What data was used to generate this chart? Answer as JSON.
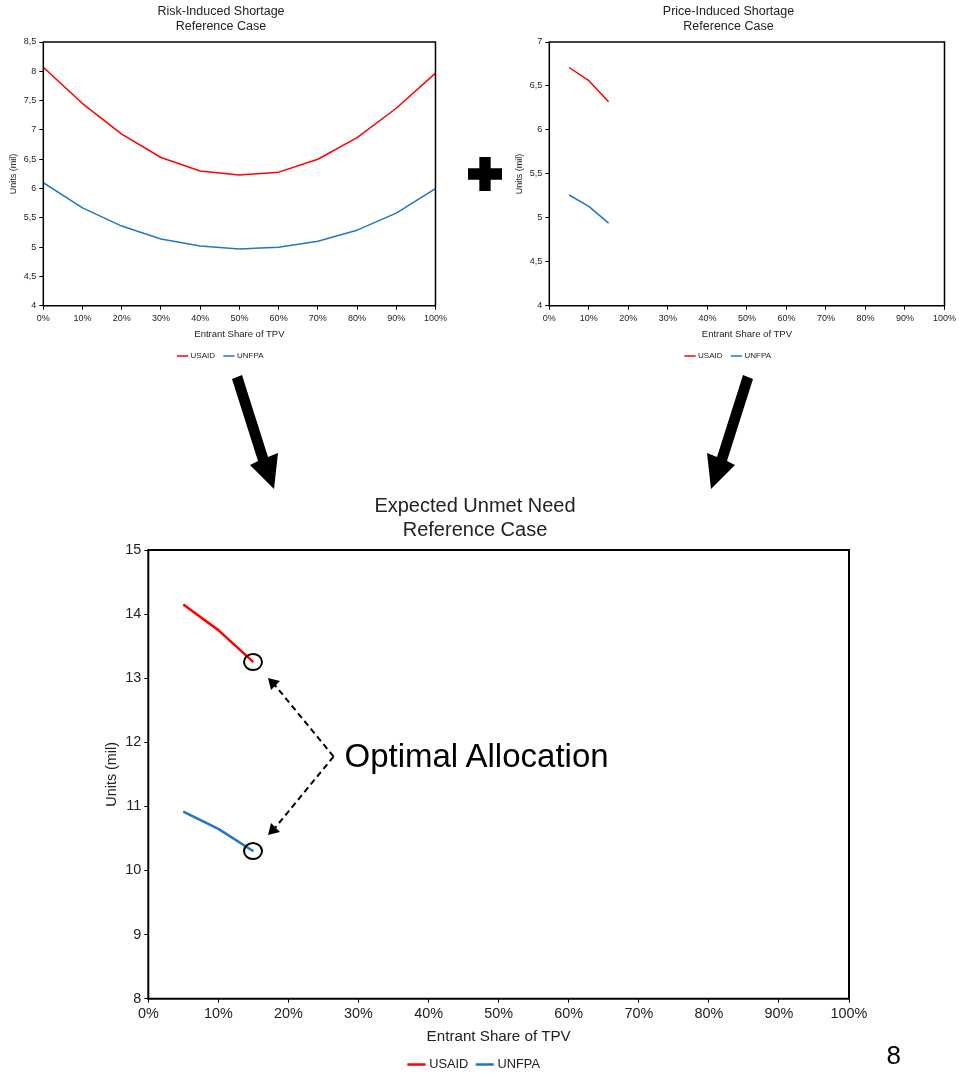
{
  "chart_data": [
    {
      "type": "line",
      "title": "Risk-Induced Shortage\nReference Case",
      "xlabel": "Entrant Share of TPV",
      "ylabel": "Units (mil)",
      "x": [
        0,
        10,
        20,
        30,
        40,
        50,
        60,
        70,
        80,
        90,
        100
      ],
      "series": [
        {
          "name": "USAID",
          "color": "#ff0000",
          "values": [
            8.07,
            7.45,
            6.93,
            6.53,
            6.3,
            6.23,
            6.28,
            6.5,
            6.87,
            7.37,
            7.97
          ]
        },
        {
          "name": "UNFPA",
          "color": "#1f77c8",
          "values": [
            6.1,
            5.67,
            5.36,
            5.14,
            5.02,
            4.97,
            5.0,
            5.1,
            5.29,
            5.58,
            6.0
          ]
        }
      ],
      "xlim": [
        0,
        100
      ],
      "xticks": [
        {
          "value": 0,
          "label": "0%"
        },
        {
          "value": 10,
          "label": "10%"
        },
        {
          "value": 20,
          "label": "20%"
        },
        {
          "value": 30,
          "label": "30%"
        },
        {
          "value": 40,
          "label": "40%"
        },
        {
          "value": 50,
          "label": "50%"
        },
        {
          "value": 60,
          "label": "60%"
        },
        {
          "value": 70,
          "label": "70%"
        },
        {
          "value": 80,
          "label": "80%"
        },
        {
          "value": 90,
          "label": "90%"
        },
        {
          "value": 100,
          "label": "100%"
        }
      ],
      "ylim": [
        4,
        8.5
      ],
      "yticks": [
        4,
        {
          "value": 4.5,
          "label": "4,5"
        },
        5,
        {
          "value": 5.5,
          "label": "5,5"
        },
        6,
        {
          "value": 6.5,
          "label": "6,5"
        },
        7,
        {
          "value": 7.5,
          "label": "7,5"
        },
        8,
        {
          "value": 8.5,
          "label": "8,5"
        }
      ],
      "legend": "bottom",
      "marker": "none",
      "line_style": "solid"
    },
    {
      "type": "line",
      "title": "Price-Induced Shortage\nReference Case",
      "xlabel": "Entrant Share of TPV",
      "ylabel": "Units (mil)",
      "x": [
        5,
        10,
        15
      ],
      "series": [
        {
          "name": "USAID",
          "color": "#ff0000",
          "values": [
            6.71,
            6.56,
            6.32
          ]
        },
        {
          "name": "UNFPA",
          "color": "#1f77c8",
          "values": [
            5.26,
            5.13,
            4.94
          ]
        }
      ],
      "xlim": [
        0,
        100
      ],
      "xticks": [
        {
          "value": 0,
          "label": "0%"
        },
        {
          "value": 10,
          "label": "10%"
        },
        {
          "value": 20,
          "label": "20%"
        },
        {
          "value": 30,
          "label": "30%"
        },
        {
          "value": 40,
          "label": "40%"
        },
        {
          "value": 50,
          "label": "50%"
        },
        {
          "value": 60,
          "label": "60%"
        },
        {
          "value": 70,
          "label": "70%"
        },
        {
          "value": 80,
          "label": "80%"
        },
        {
          "value": 90,
          "label": "90%"
        },
        {
          "value": 100,
          "label": "100%"
        }
      ],
      "ylim": [
        4,
        7
      ],
      "yticks": [
        4,
        {
          "value": 4.5,
          "label": "4,5"
        },
        5,
        {
          "value": 5.5,
          "label": "5,5"
        },
        6,
        {
          "value": 6.5,
          "label": "6,5"
        },
        7
      ],
      "legend": "bottom",
      "marker": "none",
      "line_style": "solid"
    },
    {
      "type": "line",
      "title": "Expected Unmet Need\nReference Case",
      "xlabel": "Entrant Share of TPV",
      "ylabel": "Units (mil)",
      "x": [
        5,
        10,
        15
      ],
      "series": [
        {
          "name": "USAID",
          "color": "#ff0000",
          "values": [
            14.15,
            13.75,
            13.25
          ]
        },
        {
          "name": "UNFPA",
          "color": "#1f77c8",
          "values": [
            10.92,
            10.65,
            10.3
          ]
        }
      ],
      "xlim": [
        0,
        100
      ],
      "xticks": [
        {
          "value": 0,
          "label": "0%"
        },
        {
          "value": 10,
          "label": "10%"
        },
        {
          "value": 20,
          "label": "20%"
        },
        {
          "value": 30,
          "label": "30%"
        },
        {
          "value": 40,
          "label": "40%"
        },
        {
          "value": 50,
          "label": "50%"
        },
        {
          "value": 60,
          "label": "60%"
        },
        {
          "value": 70,
          "label": "70%"
        },
        {
          "value": 80,
          "label": "80%"
        },
        {
          "value": 90,
          "label": "90%"
        },
        {
          "value": 100,
          "label": "100%"
        }
      ],
      "ylim": [
        8,
        15
      ],
      "yticks": [
        8,
        9,
        10,
        11,
        12,
        13,
        14,
        15
      ],
      "annotations": [
        "Optimal Allocation",
        "8"
      ],
      "legend": "bottom",
      "marker": "none",
      "line_style": "solid"
    }
  ]
}
